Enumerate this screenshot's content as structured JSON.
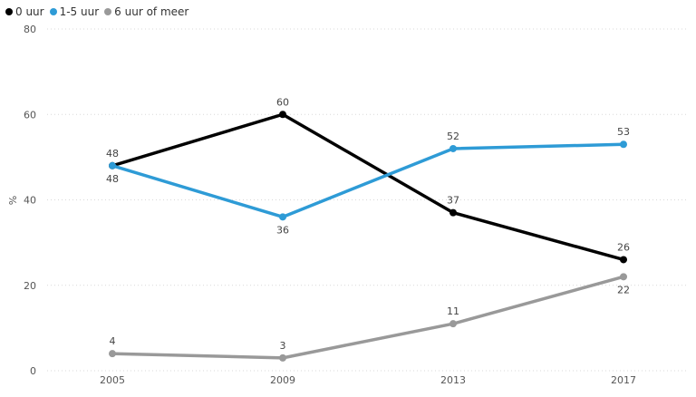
{
  "chart_data": {
    "type": "line",
    "x": [
      "2005",
      "2009",
      "2013",
      "2017"
    ],
    "ylabel": "%",
    "ylim": [
      0,
      80
    ],
    "yticks": [
      "0",
      "20",
      "40",
      "60",
      "80"
    ],
    "legend_position": "top-left",
    "grid": true,
    "series": [
      {
        "name": "0 uur",
        "color": "#000000",
        "values": [
          48,
          60,
          37,
          26
        ],
        "label_pos": [
          "above",
          "above",
          "above",
          "above"
        ]
      },
      {
        "name": "1-5 uur",
        "color": "#2e9bd6",
        "values": [
          48,
          36,
          52,
          53
        ],
        "label_pos": [
          "below",
          "below",
          "above",
          "above"
        ]
      },
      {
        "name": "6 uur of meer",
        "color": "#999999",
        "values": [
          4,
          3,
          11,
          22
        ],
        "label_pos": [
          "above",
          "above",
          "above",
          "below"
        ]
      }
    ]
  }
}
